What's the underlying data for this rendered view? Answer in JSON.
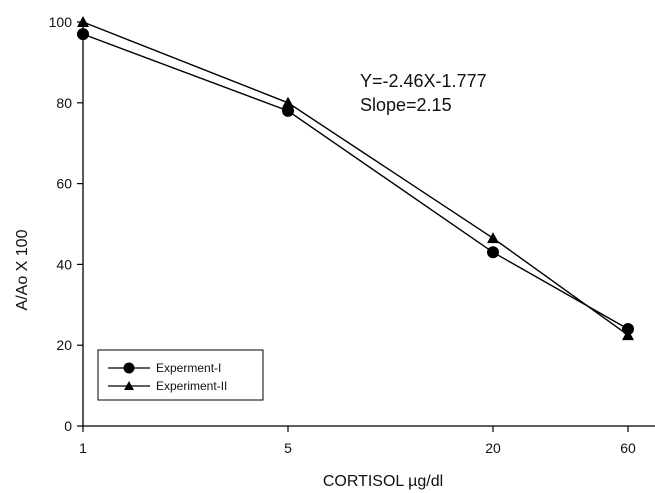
{
  "chart_data": {
    "type": "line",
    "title": "",
    "xlabel": "CORTISOL µg/dl",
    "ylabel": "A/Ao X 100",
    "x_categories": [
      "1",
      "5",
      "20",
      "60"
    ],
    "x_scale": "log-spaced (1, 5, 20, 60 at equal intervals)",
    "ylim": [
      0,
      100
    ],
    "yticks": [
      0,
      20,
      40,
      60,
      80,
      100
    ],
    "grid": false,
    "legend_position": "bottom-left",
    "series": [
      {
        "name": "Experment-I",
        "marker": "circle",
        "values": [
          97,
          78,
          43,
          24
        ]
      },
      {
        "name": "Experiment-II",
        "marker": "triangle",
        "values": [
          100,
          80,
          46.5,
          22.5
        ]
      }
    ],
    "annotations": [
      "Y=-2.46X-1.777",
      "Slope=2.15"
    ]
  }
}
